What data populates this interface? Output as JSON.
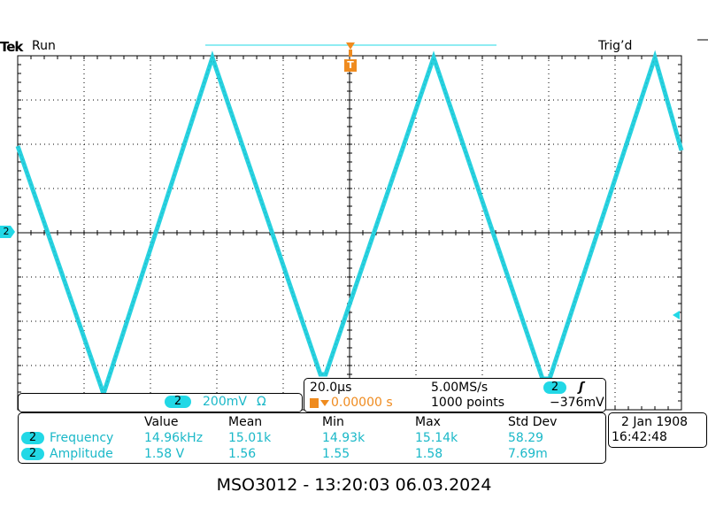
{
  "header": {
    "brand": "Tek",
    "run_state": "Run",
    "trigger_state": "Trig’d",
    "trigger_marker_label": "T",
    "channel_marker": "2"
  },
  "colors": {
    "channel2": "#22d8e6",
    "trace": "#28d2e0",
    "trigger": "#ef8b1f",
    "grid": "#000000",
    "background": "#ffffff"
  },
  "waveform": {
    "shape": "triangle",
    "grid_divisions_x": 10,
    "grid_divisions_y": 8
  },
  "channel_panel": {
    "channel": "2",
    "scale": "200mV",
    "impedance_symbol": "Ω"
  },
  "timebase_panel": {
    "time_per_div": "20.0µs",
    "sample_rate": "5.00MS/s",
    "trigger_channel": "2",
    "trigger_slope_symbol": "ʃ",
    "trigger_position": "0.00000 s",
    "record_length": "1000 points",
    "trigger_level": "−376mV"
  },
  "measurements": {
    "headers": [
      "Value",
      "Mean",
      "Min",
      "Max",
      "Std Dev"
    ],
    "rows": [
      {
        "channel": "2",
        "name": "Frequency",
        "values": [
          "14.96kHz",
          "15.01k",
          "14.93k",
          "15.14k",
          "58.29"
        ]
      },
      {
        "channel": "2",
        "name": "Amplitude",
        "values": [
          "1.58 V",
          "1.56",
          "1.55",
          "1.58",
          "7.69m"
        ]
      }
    ]
  },
  "datetime_panel": {
    "date": "2 Jan  1908",
    "time": "16:42:48"
  },
  "caption": "MSO3012 - 13:20:03   06.03.2024"
}
